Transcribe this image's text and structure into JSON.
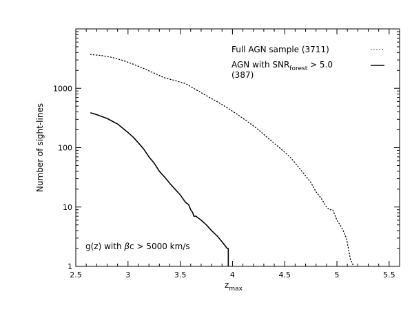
{
  "chart_data": {
    "type": "line",
    "xlabel": "z",
    "xlabel_sub": "max",
    "ylabel": "Number of sight-lines",
    "xlim": [
      2.5,
      5.6
    ],
    "ylim": [
      1,
      10000
    ],
    "yscale": "log",
    "x_ticks": [
      2.5,
      3,
      3.5,
      4,
      4.5,
      5,
      5.5
    ],
    "x_tick_labels": [
      "2.5",
      "3",
      "3.5",
      "4",
      "4.5",
      "5",
      "5.5"
    ],
    "y_ticks": [
      1,
      10,
      100,
      1000
    ],
    "y_tick_labels": [
      "1",
      "10",
      "100",
      "1000"
    ],
    "legend_placement": "top-right",
    "grid": false,
    "annotation": {
      "prefix": "g(z) with ",
      "symbol": "β",
      "suffix": "c > 5000 km/s"
    },
    "series": [
      {
        "label_main": "Full AGN sample (3711)",
        "style": "dotted",
        "x": [
          2.64,
          2.75,
          2.85,
          2.95,
          3.05,
          3.15,
          3.25,
          3.35,
          3.45,
          3.55,
          3.65,
          3.75,
          3.85,
          3.95,
          4.05,
          4.15,
          4.25,
          4.35,
          4.45,
          4.55,
          4.62,
          4.68,
          4.75,
          4.8,
          4.85,
          4.9,
          4.93,
          4.96,
          5.0,
          5.03,
          5.06,
          5.09,
          5.11,
          5.13,
          5.16
        ],
        "y": [
          3711,
          3550,
          3300,
          2950,
          2550,
          2150,
          1800,
          1500,
          1350,
          1200,
          950,
          750,
          600,
          470,
          360,
          270,
          200,
          140,
          100,
          70,
          50,
          37,
          26,
          18,
          14,
          10,
          9,
          9,
          6,
          5,
          4,
          3,
          2,
          1.3,
          1
        ]
      },
      {
        "label_main": "AGN with SNR",
        "label_sub": "forest",
        "label_tail": " > 5.0",
        "label_line2": "(387)",
        "style": "solid",
        "x": [
          2.64,
          2.7,
          2.8,
          2.9,
          3.0,
          3.05,
          3.1,
          3.15,
          3.2,
          3.25,
          3.3,
          3.35,
          3.4,
          3.45,
          3.5,
          3.55,
          3.58,
          3.6,
          3.62,
          3.63,
          3.65,
          3.7,
          3.75,
          3.8,
          3.85,
          3.9,
          3.95,
          3.96,
          3.96
        ],
        "y": [
          387,
          360,
          310,
          250,
          180,
          150,
          120,
          95,
          70,
          55,
          40,
          32,
          25,
          20,
          16,
          12,
          11,
          9,
          8,
          7,
          7,
          6,
          5,
          4,
          3.3,
          2.6,
          2,
          2,
          1
        ]
      }
    ]
  }
}
